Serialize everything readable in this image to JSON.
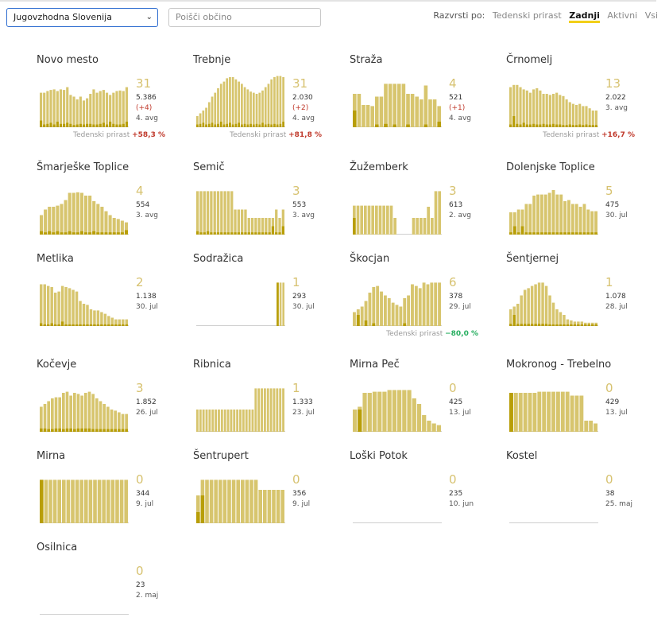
{
  "toolbar": {
    "region": "Jugovzhodna Slovenija",
    "search_placeholder": "Poišči občino",
    "sort_label": "Razvrsti po:",
    "sort_options": [
      "Tedenski prirast",
      "Zadnji",
      "Aktivni",
      "Vsi"
    ],
    "sort_active": "Zadnji"
  },
  "colors": {
    "bar": "#d7c56e",
    "bar_dark": "#b89e08",
    "growth_up": "#c0392b",
    "growth_down": "#27ae60",
    "accent": "#f2cf18"
  },
  "municipalities": [
    {
      "name": "Novo mesto",
      "active": "31",
      "population": "5.386",
      "delta": "(+4)",
      "when": "4. avg",
      "growth_label": "Tedenski prirast",
      "growth": "+58,3 %",
      "growth_dir": "up",
      "bars": [
        0.62,
        0.62,
        0.65,
        0.67,
        0.68,
        0.65,
        0.68,
        0.67,
        0.72,
        0.58,
        0.55,
        0.5,
        0.55,
        0.48,
        0.52,
        0.6,
        0.68,
        0.62,
        0.65,
        0.67,
        0.62,
        0.58,
        0.62,
        0.65,
        0.66,
        0.65,
        0.72
      ],
      "active_bars": [
        0.12,
        0.05,
        0.06,
        0.08,
        0.05,
        0.1,
        0.06,
        0.06,
        0.08,
        0.06,
        0.04,
        0.05,
        0.06,
        0.05,
        0.06,
        0.06,
        0.05,
        0.05,
        0.06,
        0.08,
        0.05,
        0.1,
        0.06,
        0.05,
        0.05,
        0.06,
        0.1
      ]
    },
    {
      "name": "Trebnje",
      "active": "31",
      "population": "2.030",
      "delta": "(+2)",
      "when": "4. avg",
      "growth_label": "Tedenski prirast",
      "growth": "+81,8 %",
      "growth_dir": "up",
      "bars": [
        0.2,
        0.25,
        0.3,
        0.35,
        0.45,
        0.55,
        0.62,
        0.7,
        0.78,
        0.82,
        0.88,
        0.9,
        0.9,
        0.86,
        0.82,
        0.78,
        0.72,
        0.68,
        0.64,
        0.62,
        0.6,
        0.62,
        0.66,
        0.72,
        0.78,
        0.86,
        0.9,
        0.92,
        0.92,
        0.9
      ],
      "active_bars": [
        0.05,
        0.06,
        0.08,
        0.05,
        0.06,
        0.08,
        0.05,
        0.06,
        0.1,
        0.05,
        0.06,
        0.08,
        0.05,
        0.06,
        0.08,
        0.05,
        0.06,
        0.05,
        0.06,
        0.05,
        0.06,
        0.05,
        0.08,
        0.05,
        0.06,
        0.05,
        0.06,
        0.05,
        0.06,
        0.1
      ]
    },
    {
      "name": "Straža",
      "active": "4",
      "population": "521",
      "delta": "(+1)",
      "when": "4. avg",
      "growth_label": "",
      "growth": "",
      "growth_dir": "",
      "bars": [
        0.6,
        0.6,
        0.4,
        0.4,
        0.38,
        0.55,
        0.55,
        0.78,
        0.78,
        0.78,
        0.78,
        0.78,
        0.6,
        0.6,
        0.55,
        0.5,
        0.75,
        0.5,
        0.5,
        0.38
      ],
      "active_bars": [
        0.3,
        0.0,
        0.0,
        0.0,
        0.0,
        0.05,
        0.0,
        0.06,
        0.0,
        0.05,
        0.0,
        0.0,
        0.05,
        0.0,
        0.0,
        0.0,
        0.05,
        0.0,
        0.0,
        0.1
      ]
    },
    {
      "name": "Črnomelj",
      "active": "13",
      "population": "2.022",
      "delta": "",
      "when": "3. avg",
      "growth_label": "Tedenski prirast",
      "growth": "+16,7 %",
      "growth_dir": "up",
      "bars": [
        0.72,
        0.76,
        0.76,
        0.72,
        0.68,
        0.66,
        0.62,
        0.68,
        0.7,
        0.66,
        0.6,
        0.6,
        0.58,
        0.6,
        0.62,
        0.58,
        0.56,
        0.5,
        0.45,
        0.42,
        0.4,
        0.42,
        0.38,
        0.38,
        0.34,
        0.3,
        0.3
      ],
      "active_bars": [
        0.05,
        0.2,
        0.06,
        0.05,
        0.08,
        0.05,
        0.05,
        0.06,
        0.05,
        0.05,
        0.06,
        0.05,
        0.05,
        0.06,
        0.05,
        0.05,
        0.04,
        0.04,
        0.05,
        0.04,
        0.04,
        0.05,
        0.04,
        0.05,
        0.04,
        0.04,
        0.04
      ]
    },
    {
      "name": "Šmarješke Toplice",
      "active": "4",
      "population": "554",
      "delta": "",
      "when": "3. avg",
      "growth_label": "",
      "growth": "",
      "growth_dir": "",
      "bars": [
        0.35,
        0.45,
        0.5,
        0.5,
        0.52,
        0.55,
        0.62,
        0.75,
        0.75,
        0.76,
        0.75,
        0.7,
        0.7,
        0.6,
        0.55,
        0.5,
        0.42,
        0.35,
        0.3,
        0.28,
        0.25,
        0.22
      ],
      "active_bars": [
        0.06,
        0.04,
        0.06,
        0.04,
        0.06,
        0.04,
        0.04,
        0.06,
        0.04,
        0.04,
        0.06,
        0.04,
        0.04,
        0.06,
        0.04,
        0.04,
        0.04,
        0.04,
        0.04,
        0.04,
        0.04,
        0.08
      ]
    },
    {
      "name": "Semič",
      "active": "3",
      "population": "553",
      "delta": "",
      "when": "3. avg",
      "growth_label": "",
      "growth": "",
      "growth_dir": "",
      "bars": [
        0.78,
        0.78,
        0.78,
        0.78,
        0.78,
        0.78,
        0.78,
        0.78,
        0.78,
        0.78,
        0.78,
        0.45,
        0.45,
        0.45,
        0.45,
        0.3,
        0.3,
        0.3,
        0.3,
        0.3,
        0.3,
        0.3,
        0.3,
        0.45,
        0.3,
        0.45
      ],
      "active_bars": [
        0.06,
        0.04,
        0.04,
        0.06,
        0.04,
        0.04,
        0.04,
        0.04,
        0.04,
        0.04,
        0.04,
        0.04,
        0.04,
        0.04,
        0.04,
        0.04,
        0.04,
        0.04,
        0.04,
        0.04,
        0.04,
        0.04,
        0.15,
        0.04,
        0.04,
        0.15
      ]
    },
    {
      "name": "Žužemberk",
      "active": "3",
      "population": "613",
      "delta": "",
      "when": "2. avg",
      "growth_label": "",
      "growth": "",
      "growth_dir": "",
      "bars": [
        0.52,
        0.52,
        0.52,
        0.52,
        0.52,
        0.52,
        0.52,
        0.52,
        0.52,
        0.52,
        0.52,
        0.3,
        0.0,
        0.0,
        0.0,
        0.0,
        0.3,
        0.3,
        0.3,
        0.3,
        0.5,
        0.3,
        0.78,
        0.78
      ],
      "active_bars": [
        0.3,
        0.0,
        0.0,
        0.0,
        0.0,
        0.0,
        0.0,
        0.0,
        0.0,
        0.0,
        0.0,
        0.0,
        0.0,
        0.0,
        0.0,
        0.0,
        0.0,
        0.0,
        0.0,
        0.0,
        0.0,
        0.0,
        0.0,
        0.0
      ]
    },
    {
      "name": "Dolenjske Toplice",
      "active": "5",
      "population": "475",
      "delta": "",
      "when": "30. jul",
      "growth_label": "",
      "growth": "",
      "growth_dir": "",
      "bars": [
        0.4,
        0.4,
        0.45,
        0.45,
        0.55,
        0.55,
        0.7,
        0.72,
        0.72,
        0.72,
        0.75,
        0.8,
        0.72,
        0.72,
        0.6,
        0.62,
        0.55,
        0.55,
        0.5,
        0.55,
        0.45,
        0.42,
        0.42
      ],
      "active_bars": [
        0.04,
        0.15,
        0.04,
        0.15,
        0.04,
        0.04,
        0.04,
        0.04,
        0.04,
        0.04,
        0.04,
        0.04,
        0.04,
        0.04,
        0.04,
        0.04,
        0.04,
        0.04,
        0.04,
        0.04,
        0.04,
        0.04,
        0.04
      ]
    },
    {
      "name": "Metlika",
      "active": "2",
      "population": "1.138",
      "delta": "",
      "when": "30. jul",
      "growth_label": "",
      "growth": "",
      "growth_dir": "",
      "bars": [
        0.75,
        0.75,
        0.72,
        0.7,
        0.6,
        0.62,
        0.72,
        0.7,
        0.68,
        0.65,
        0.62,
        0.45,
        0.4,
        0.38,
        0.3,
        0.28,
        0.28,
        0.25,
        0.22,
        0.18,
        0.15,
        0.12,
        0.12,
        0.12,
        0.12
      ],
      "active_bars": [
        0.05,
        0.03,
        0.03,
        0.05,
        0.03,
        0.03,
        0.08,
        0.03,
        0.03,
        0.03,
        0.03,
        0.03,
        0.03,
        0.03,
        0.03,
        0.03,
        0.03,
        0.03,
        0.03,
        0.03,
        0.03,
        0.03,
        0.03,
        0.03,
        0.03
      ]
    },
    {
      "name": "Sodražica",
      "active": "1",
      "population": "293",
      "delta": "",
      "when": "30. jul",
      "growth_label": "",
      "growth": "",
      "growth_dir": "",
      "bars": [
        0,
        0,
        0,
        0,
        0,
        0,
        0,
        0,
        0,
        0,
        0,
        0,
        0,
        0,
        0,
        0,
        0,
        0,
        0,
        0,
        0,
        0,
        0,
        0,
        0,
        0,
        0,
        0,
        0.78,
        0.78,
        0.78
      ],
      "active_bars": [
        0,
        0,
        0,
        0,
        0,
        0,
        0,
        0,
        0,
        0,
        0,
        0,
        0,
        0,
        0,
        0,
        0,
        0,
        0,
        0,
        0,
        0,
        0,
        0,
        0,
        0,
        0,
        0,
        0.78,
        0,
        0
      ]
    },
    {
      "name": "Škocjan",
      "active": "6",
      "population": "378",
      "delta": "",
      "when": "29. jul",
      "growth_label": "Tedenski prirast",
      "growth": "−80,0 %",
      "growth_dir": "down",
      "bars": [
        0.25,
        0.3,
        0.35,
        0.45,
        0.6,
        0.7,
        0.72,
        0.62,
        0.55,
        0.5,
        0.42,
        0.38,
        0.35,
        0.5,
        0.55,
        0.75,
        0.72,
        0.68,
        0.78,
        0.75,
        0.78,
        0.78,
        0.78
      ],
      "active_bars": [
        0.0,
        0.2,
        0.0,
        0.1,
        0.0,
        0.05,
        0.0,
        0.0,
        0.0,
        0.0,
        0.0,
        0.0,
        0.0,
        0.05,
        0.0,
        0.0,
        0.0,
        0.0,
        0.0,
        0.0,
        0.0,
        0.0,
        0.0
      ]
    },
    {
      "name": "Šentjernej",
      "active": "1",
      "population": "1.078",
      "delta": "",
      "when": "28. jul",
      "growth_label": "",
      "growth": "",
      "growth_dir": "",
      "bars": [
        0.3,
        0.35,
        0.4,
        0.55,
        0.65,
        0.68,
        0.72,
        0.75,
        0.78,
        0.78,
        0.72,
        0.55,
        0.42,
        0.3,
        0.25,
        0.2,
        0.12,
        0.1,
        0.08,
        0.08,
        0.08,
        0.06,
        0.06,
        0.06,
        0.06
      ],
      "active_bars": [
        0.04,
        0.2,
        0.04,
        0.04,
        0.04,
        0.04,
        0.04,
        0.04,
        0.04,
        0.04,
        0.04,
        0.03,
        0.03,
        0.03,
        0.03,
        0.03,
        0.03,
        0.03,
        0.03,
        0.03,
        0.03,
        0.03,
        0.03,
        0.03,
        0.03
      ]
    },
    {
      "name": "Kočevje",
      "active": "3",
      "population": "1.852",
      "delta": "",
      "when": "26. jul",
      "growth_label": "",
      "growth": "",
      "growth_dir": "",
      "bars": [
        0.45,
        0.5,
        0.55,
        0.6,
        0.62,
        0.62,
        0.7,
        0.72,
        0.65,
        0.7,
        0.68,
        0.65,
        0.7,
        0.72,
        0.68,
        0.6,
        0.55,
        0.5,
        0.45,
        0.4,
        0.38,
        0.35,
        0.32,
        0.32
      ],
      "active_bars": [
        0.06,
        0.06,
        0.05,
        0.05,
        0.06,
        0.06,
        0.05,
        0.06,
        0.06,
        0.05,
        0.06,
        0.06,
        0.06,
        0.06,
        0.05,
        0.05,
        0.05,
        0.05,
        0.05,
        0.05,
        0.05,
        0.05,
        0.05,
        0.05
      ]
    },
    {
      "name": "Ribnica",
      "active": "1",
      "population": "1.333",
      "delta": "",
      "when": "23. jul",
      "growth_label": "",
      "growth": "",
      "growth_dir": "",
      "bars": [
        0.4,
        0.4,
        0.4,
        0.4,
        0.4,
        0.4,
        0.4,
        0.4,
        0.4,
        0.4,
        0.4,
        0.4,
        0.4,
        0.4,
        0.4,
        0.4,
        0.4,
        0.4,
        0.4,
        0.78,
        0.78,
        0.78,
        0.78,
        0.78,
        0.78,
        0.78,
        0.78,
        0.78,
        0.78
      ],
      "active_bars": [
        0,
        0,
        0,
        0,
        0,
        0,
        0,
        0,
        0,
        0,
        0,
        0,
        0,
        0,
        0,
        0,
        0,
        0,
        0,
        0,
        0,
        0,
        0,
        0,
        0,
        0,
        0,
        0,
        0
      ]
    },
    {
      "name": "Mirna Peč",
      "active": "0",
      "population": "425",
      "delta": "",
      "when": "13. jul",
      "growth_label": "",
      "growth": "",
      "growth_dir": "",
      "bars": [
        0.4,
        0.45,
        0.7,
        0.7,
        0.72,
        0.72,
        0.72,
        0.75,
        0.75,
        0.75,
        0.75,
        0.75,
        0.6,
        0.5,
        0.3,
        0.2,
        0.15,
        0.12
      ],
      "active_bars": [
        0.0,
        0.4,
        0.0,
        0.0,
        0.0,
        0.0,
        0.0,
        0.0,
        0.0,
        0.0,
        0.0,
        0.0,
        0.0,
        0.0,
        0.0,
        0.0,
        0.0,
        0.0
      ]
    },
    {
      "name": "Mokronog - Trebelno",
      "active": "0",
      "population": "429",
      "delta": "",
      "when": "13. jul",
      "growth_label": "",
      "growth": "",
      "growth_dir": "",
      "bars": [
        0.7,
        0.7,
        0.7,
        0.7,
        0.7,
        0.7,
        0.72,
        0.72,
        0.72,
        0.72,
        0.72,
        0.72,
        0.72,
        0.65,
        0.65,
        0.65,
        0.2,
        0.2,
        0.15
      ],
      "active_bars": [
        0.7,
        0.0,
        0.0,
        0.0,
        0.0,
        0.0,
        0.0,
        0.0,
        0.0,
        0.0,
        0.0,
        0.0,
        0.0,
        0.0,
        0.0,
        0.0,
        0.0,
        0.0,
        0.0
      ]
    },
    {
      "name": "Mirna",
      "active": "0",
      "population": "344",
      "delta": "",
      "when": "9. jul",
      "growth_label": "",
      "growth": "",
      "growth_dir": "",
      "bars": [
        0.78,
        0.78,
        0.78,
        0.78,
        0.78,
        0.78,
        0.78,
        0.78,
        0.78,
        0.78,
        0.78,
        0.78,
        0.78,
        0.78,
        0.78,
        0.78,
        0.78,
        0.78,
        0.78,
        0.78
      ],
      "active_bars": [
        0.78,
        0.0,
        0.0,
        0.0,
        0.0,
        0.0,
        0.0,
        0.0,
        0.0,
        0.0,
        0.0,
        0.0,
        0.0,
        0.0,
        0.0,
        0.0,
        0.0,
        0.0,
        0.0,
        0.0
      ]
    },
    {
      "name": "Šentrupert",
      "active": "0",
      "population": "356",
      "delta": "",
      "when": "9. jul",
      "growth_label": "",
      "growth": "",
      "growth_dir": "",
      "bars": [
        0.5,
        0.78,
        0.78,
        0.78,
        0.78,
        0.78,
        0.78,
        0.78,
        0.78,
        0.78,
        0.78,
        0.78,
        0.78,
        0.78,
        0.6,
        0.6,
        0.6,
        0.6,
        0.6,
        0.6
      ],
      "active_bars": [
        0.2,
        0.5,
        0.0,
        0.0,
        0.0,
        0.0,
        0.0,
        0.0,
        0.0,
        0.0,
        0.0,
        0.0,
        0.0,
        0.0,
        0.0,
        0.0,
        0.0,
        0.0,
        0.0,
        0.0
      ]
    },
    {
      "name": "Loški Potok",
      "active": "0",
      "population": "235",
      "delta": "",
      "when": "10. jun",
      "growth_label": "",
      "growth": "",
      "growth_dir": "",
      "bars": [],
      "active_bars": []
    },
    {
      "name": "Kostel",
      "active": "0",
      "population": "38",
      "delta": "",
      "when": "25. maj",
      "growth_label": "",
      "growth": "",
      "growth_dir": "",
      "bars": [],
      "active_bars": []
    },
    {
      "name": "Osilnica",
      "active": "0",
      "population": "23",
      "delta": "",
      "when": "2. maj",
      "growth_label": "",
      "growth": "",
      "growth_dir": "",
      "bars": [],
      "active_bars": []
    }
  ]
}
